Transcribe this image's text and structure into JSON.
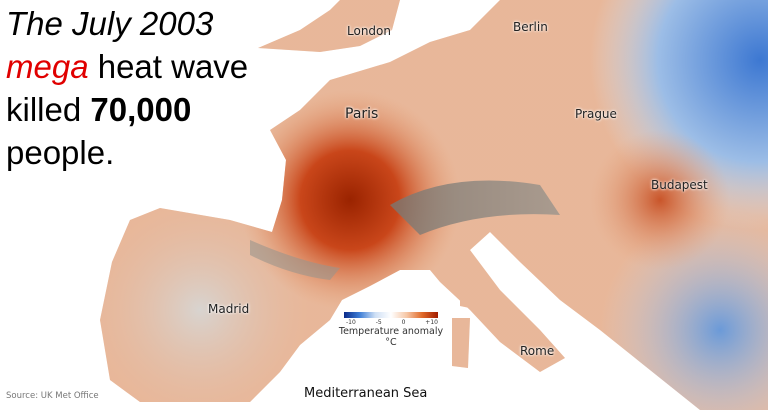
{
  "headline": {
    "line1": "The July 2003",
    "line2_emph": "mega",
    "line2_rest": " heat wave",
    "line3_pre": "killed ",
    "line3_num": "70,000",
    "line4": "people."
  },
  "cities": [
    "London",
    "Berlin",
    "Paris",
    "Prague",
    "Budapest",
    "Madrid",
    "Rome"
  ],
  "sea_label": "Mediterranean Sea",
  "legend": {
    "title": "Temperature anomaly °C",
    "ticks": [
      "-10",
      "-5",
      "0",
      "+10"
    ],
    "colors": {
      "cold": "#0a2a8a",
      "neutral": "#ffffff",
      "hot": "#a11c00"
    }
  },
  "source": "Source: UK Met Office"
}
